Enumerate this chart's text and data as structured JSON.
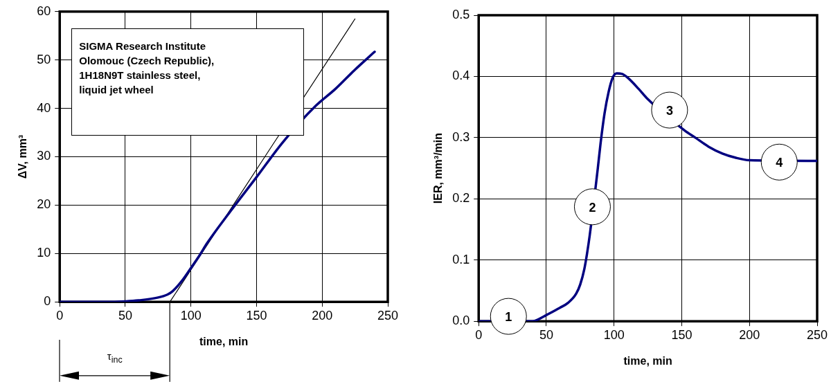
{
  "chart_data": [
    {
      "type": "line",
      "xlabel": "time, min",
      "ylabel": "ΔV, mm³",
      "xlim": [
        0,
        250
      ],
      "ylim": [
        0,
        60
      ],
      "xticks": [
        0,
        50,
        100,
        150,
        200,
        250
      ],
      "yticks": [
        0,
        10,
        20,
        30,
        40,
        50,
        60
      ],
      "grid": true,
      "legend": false,
      "marker": "none",
      "series": [
        {
          "color": "#000080",
          "x": [
            0,
            40,
            50,
            60,
            75,
            82,
            86,
            93,
            100,
            107,
            112,
            130,
            150,
            170,
            195,
            210,
            225,
            240
          ],
          "values": [
            0,
            0,
            0.1,
            0.3,
            0.9,
            1.5,
            2.2,
            4.3,
            7,
            9.8,
            12,
            18.7,
            25.8,
            33,
            40.5,
            44,
            48,
            51.7
          ]
        },
        {
          "type": "line",
          "color": "#000000",
          "x": [
            84,
            225
          ],
          "values": [
            0,
            58.5
          ]
        }
      ],
      "annotations": [
        "SIGMA Research Institute\nOlomouc (Czech Republic),\n1H18N9T stainless steel,\nliquid jet wheel",
        "τ$_{inc}$"
      ]
    },
    {
      "type": "line",
      "xlabel": "time, min",
      "ylabel": "IER, mm³/min",
      "xlim": [
        0,
        250
      ],
      "ylim": [
        0,
        0.5
      ],
      "xticks": [
        0,
        50,
        100,
        150,
        200,
        250
      ],
      "yticks": [
        {
          "value": 0,
          "label": "0.0"
        },
        0.1,
        0.2,
        0.3,
        0.4,
        0.5
      ],
      "grid": true,
      "legend": false,
      "marker": "none",
      "series": [
        {
          "color": "#000080",
          "x": [
            0,
            40,
            44,
            50,
            60,
            66,
            72,
            75,
            78,
            80,
            82,
            88,
            90,
            93,
            96,
            99,
            102,
            106,
            110,
            118,
            124,
            152,
            160,
            170,
            180,
            190,
            200,
            250
          ],
          "values": [
            0,
            0,
            0.003,
            0.01,
            0.022,
            0.03,
            0.045,
            0.06,
            0.085,
            0.11,
            0.14,
            0.25,
            0.29,
            0.34,
            0.375,
            0.398,
            0.405,
            0.404,
            0.398,
            0.38,
            0.365,
            0.312,
            0.3,
            0.285,
            0.274,
            0.267,
            0.263,
            0.262
          ]
        }
      ],
      "annotations": [
        "1",
        "2",
        "3",
        "4"
      ]
    }
  ]
}
